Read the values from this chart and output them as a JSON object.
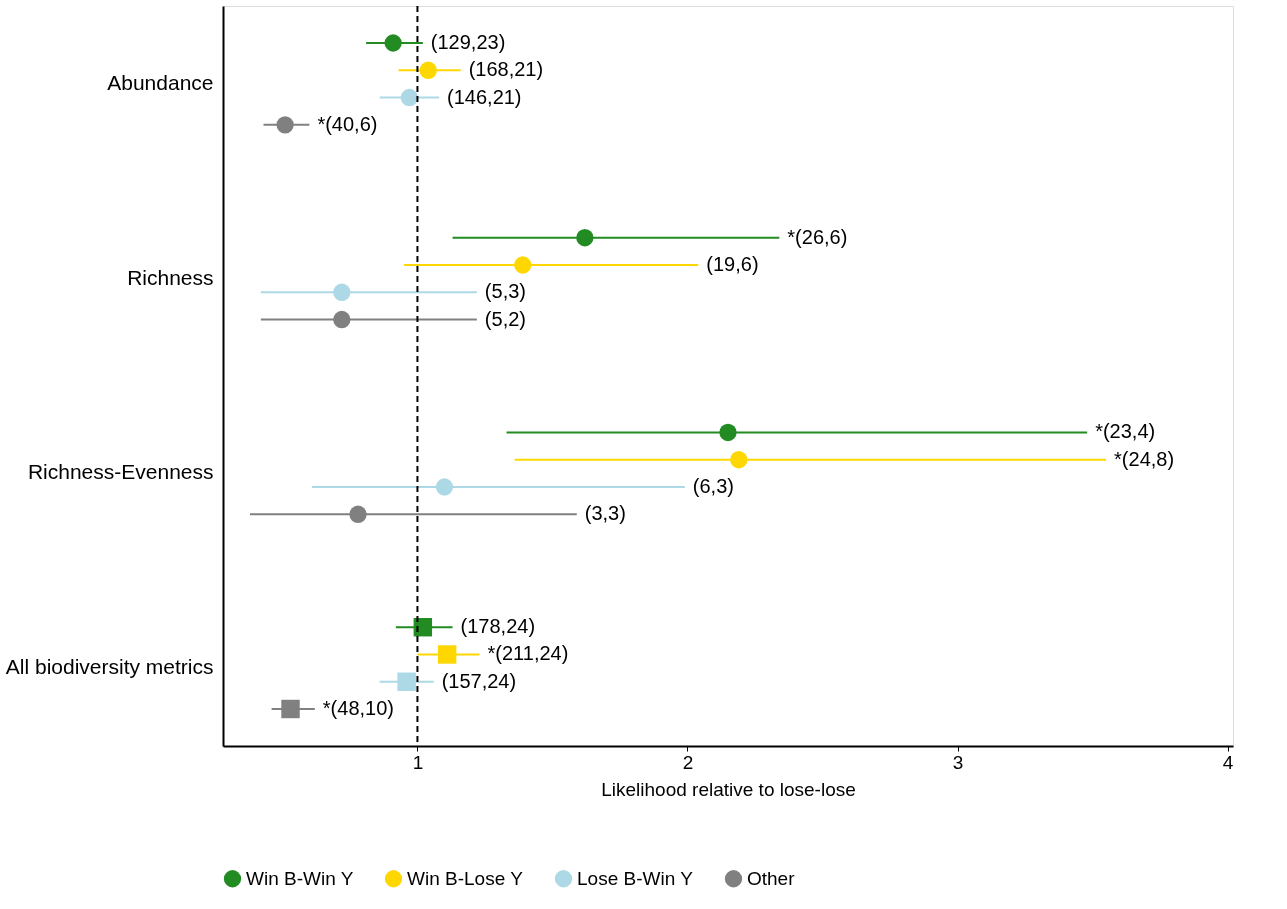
{
  "chart_data": {
    "type": "scatter",
    "orientation": "horizontal",
    "xlabel": "Likelihood relative to lose-lose",
    "categories": [
      "Abundance",
      "Richness",
      "Richness-Evenness",
      "All biodiversity metrics"
    ],
    "xlim": [
      0.28,
      4.02
    ],
    "xticks": [
      1,
      2,
      3,
      4
    ],
    "grid": false,
    "legend": "bottom",
    "marker": "circle",
    "ref_lines": [
      {
        "axis": "x",
        "value": 1,
        "color": "#000000",
        "line_style": "dashed"
      }
    ],
    "series": [
      {
        "name": "Win B-Win Y",
        "color": "#228b22",
        "values": [
          0.91,
          1.62,
          2.15,
          null
        ],
        "errors": [
          [
            0.81,
            1.02
          ],
          [
            1.13,
            2.34
          ],
          [
            1.33,
            3.48
          ],
          null
        ]
      },
      {
        "name": "Win B-Lose Y",
        "color": "#ffd700",
        "values": [
          1.04,
          1.39,
          2.19,
          null
        ],
        "errors": [
          [
            0.93,
            1.16
          ],
          [
            0.95,
            2.04
          ],
          [
            1.36,
            3.55
          ],
          null
        ]
      },
      {
        "name": "Lose B-Win Y",
        "color": "#add8e6",
        "values": [
          0.97,
          0.72,
          1.1,
          null
        ],
        "errors": [
          [
            0.86,
            1.08
          ],
          [
            0.42,
            1.22
          ],
          [
            0.61,
            1.99
          ],
          null
        ]
      },
      {
        "name": "Other",
        "color": "#808080",
        "values": [
          0.51,
          0.72,
          0.78,
          null
        ],
        "errors": [
          [
            0.43,
            0.6
          ],
          [
            0.42,
            1.22
          ],
          [
            0.38,
            1.59
          ],
          null
        ]
      },
      {
        "color": "#228b22",
        "marker": "square",
        "values": [
          null,
          null,
          null,
          1.02
        ],
        "errors": [
          null,
          null,
          null,
          [
            0.92,
            1.13
          ]
        ]
      },
      {
        "color": "#ffd700",
        "marker": "square",
        "values": [
          null,
          null,
          null,
          1.11
        ],
        "errors": [
          null,
          null,
          null,
          [
            1.0,
            1.23
          ]
        ]
      },
      {
        "color": "#add8e6",
        "marker": "square",
        "values": [
          null,
          null,
          null,
          0.96
        ],
        "errors": [
          null,
          null,
          null,
          [
            0.86,
            1.06
          ]
        ]
      },
      {
        "color": "#808080",
        "marker": "square",
        "values": [
          null,
          null,
          null,
          0.53
        ],
        "errors": [
          null,
          null,
          null,
          [
            0.46,
            0.62
          ]
        ]
      }
    ],
    "annotations": [
      "(129,23)",
      "(168,21)",
      "(146,21)",
      "*(40,6)",
      "*(26,6)",
      "(19,6)",
      "(5,3)",
      "(5,2)",
      "*(23,4)",
      "*(24,8)",
      "(6,3)",
      "(3,3)",
      "(178,24)",
      "*(211,24)",
      "(157,24)",
      "*(48,10)"
    ]
  }
}
